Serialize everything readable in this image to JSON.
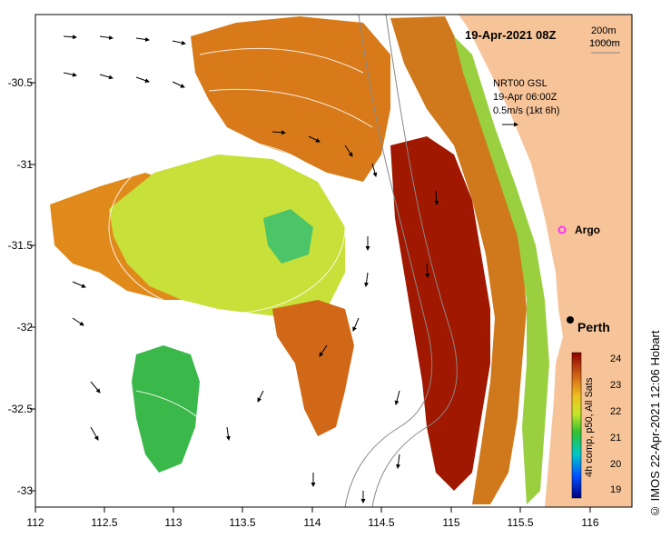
{
  "map": {
    "title": "19-Apr-2021 08Z",
    "depth_labels": [
      "200m",
      "1000m"
    ],
    "velocity_key": [
      "NRT00 GSL",
      "19-Apr 06:00Z",
      "0.5m/s (1kt 6h)"
    ],
    "place_labels": {
      "argo": "Argo",
      "perth": "Perth"
    },
    "credit": "© IMOS 22-Apr-2021 12:06 Hobart",
    "colorbar": {
      "title": "4h comp, p50, All Sats",
      "ticks": [
        "24",
        "23",
        "22",
        "21",
        "20",
        "19"
      ]
    },
    "axes": {
      "x_ticks": [
        "112",
        "112.5",
        "113",
        "113.5",
        "114",
        "114.5",
        "115",
        "115.5",
        "116"
      ],
      "y_ticks": [
        "-30.5",
        "-31",
        "-31.5",
        "-32",
        "-32.5",
        "-33"
      ]
    },
    "colors": {
      "land": "#f7c49a",
      "sst_warm": "#a01800",
      "sst_mid": "#e08a1c",
      "sst_cool": "#b8e030",
      "sst_cold": "#22b244",
      "background": "#ffffff"
    }
  }
}
